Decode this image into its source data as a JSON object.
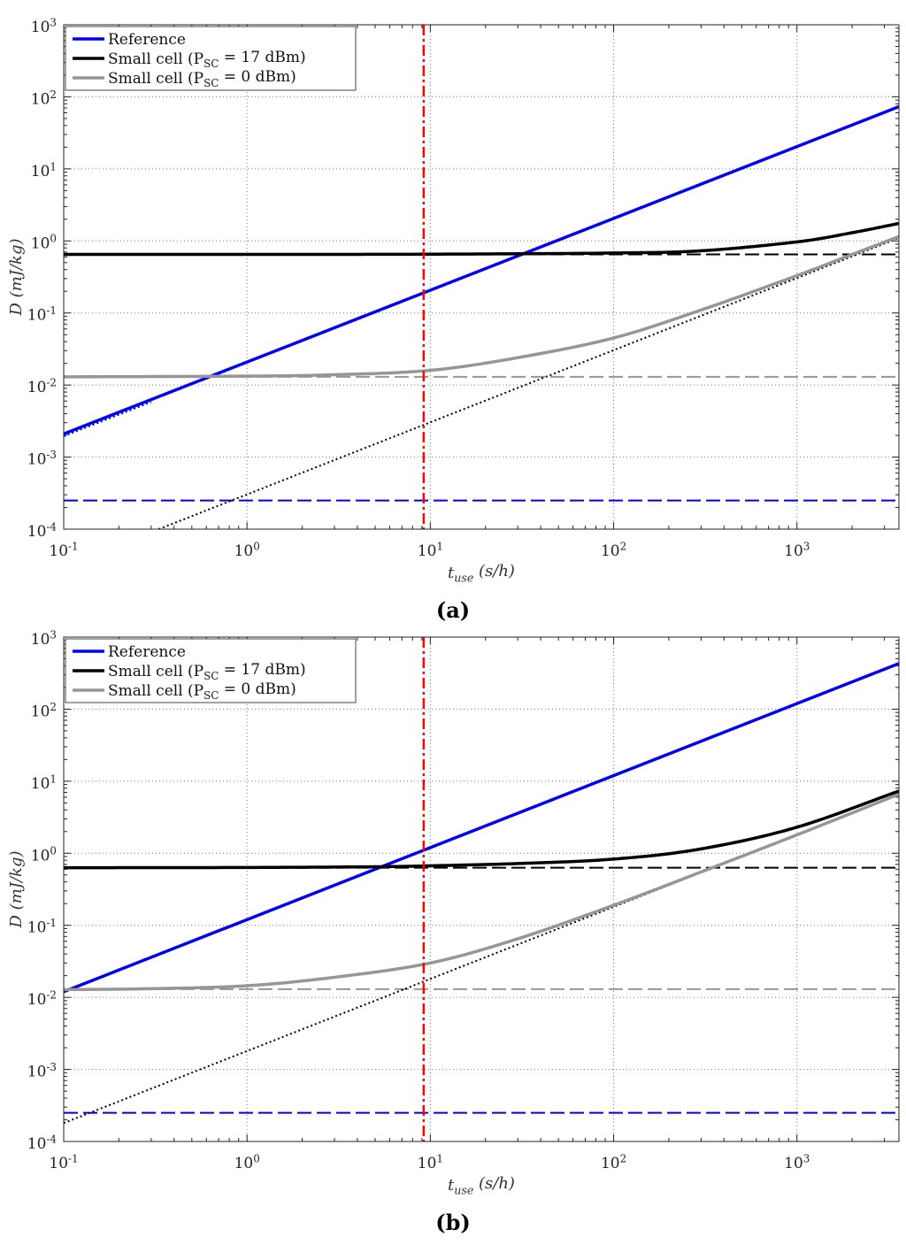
{
  "chart_data": [
    {
      "type": "line",
      "panel_label": "(a)",
      "xlabel": "t_use (s/h)",
      "ylabel": "D (mJ/kg)",
      "xscale": "log",
      "yscale": "log",
      "xlim": [
        0.1,
        3600
      ],
      "ylim": [
        0.0001,
        1000
      ],
      "grid": true,
      "legend_position": "top-left",
      "x_ticks": [
        "10^-1",
        "10^0",
        "10^1",
        "10^2",
        "10^3"
      ],
      "y_ticks": [
        "10^-4",
        "10^-3",
        "10^-2",
        "10^-1",
        "10^0",
        "10^1",
        "10^2",
        "10^3"
      ],
      "vertical_marker": {
        "x": 9.2,
        "color": "#ff0000",
        "style": "dash-dot"
      },
      "legend": [
        {
          "label": "Reference",
          "color": "#0000ee"
        },
        {
          "label": "Small cell (P_SC = 17 dBm)",
          "color": "#000000"
        },
        {
          "label": "Small cell (P_SC = 0 dBm)",
          "color": "#969696"
        }
      ],
      "series": [
        {
          "name": "Reference",
          "color": "#0000ee",
          "style": "solid",
          "x": [
            0.1,
            3600
          ],
          "y": [
            0.0021,
            73
          ]
        },
        {
          "color": "#0000ee",
          "style": "dotted",
          "x": [
            0.1,
            0.3
          ],
          "y": [
            0.00195,
            0.0058
          ]
        },
        {
          "color": "#0000ee",
          "style": "dashed",
          "x": [
            0.1,
            3600
          ],
          "y": [
            0.00025,
            0.00025
          ]
        },
        {
          "name": "Small cell (P_SC = 17 dBm)",
          "color": "#000000",
          "style": "solid",
          "x": [
            0.1,
            1,
            10,
            100,
            300,
            1000,
            2000,
            3600
          ],
          "y": [
            0.65,
            0.65,
            0.655,
            0.68,
            0.73,
            0.97,
            1.3,
            1.75
          ]
        },
        {
          "color": "#000000",
          "style": "dashed",
          "x": [
            0.1,
            3600
          ],
          "y": [
            0.65,
            0.65
          ]
        },
        {
          "name": "Small cell (P_SC = 0 dBm)",
          "color": "#969696",
          "style": "solid",
          "x": [
            0.1,
            1,
            3,
            10,
            30,
            100,
            300,
            1000,
            2000,
            3600
          ],
          "y": [
            0.013,
            0.0133,
            0.0139,
            0.016,
            0.024,
            0.045,
            0.11,
            0.33,
            0.65,
            1.15
          ]
        },
        {
          "color": "#969696",
          "style": "dashed",
          "x": [
            0.1,
            3600
          ],
          "y": [
            0.013,
            0.013
          ]
        },
        {
          "color": "#000000",
          "style": "dotted",
          "x": [
            0.33,
            3600
          ],
          "y": [
            0.0001,
            1.1
          ]
        }
      ]
    },
    {
      "type": "line",
      "panel_label": "(b)",
      "xlabel": "t_use (s/h)",
      "ylabel": "D (mJ/kg)",
      "xscale": "log",
      "yscale": "log",
      "xlim": [
        0.1,
        3600
      ],
      "ylim": [
        0.0001,
        1000
      ],
      "grid": true,
      "legend_position": "top-left",
      "x_ticks": [
        "10^-1",
        "10^0",
        "10^1",
        "10^2",
        "10^3"
      ],
      "y_ticks": [
        "10^-4",
        "10^-3",
        "10^-2",
        "10^-1",
        "10^0",
        "10^1",
        "10^2",
        "10^3"
      ],
      "vertical_marker": {
        "x": 9.2,
        "color": "#ff0000",
        "style": "dash-dot"
      },
      "legend": [
        {
          "label": "Reference",
          "color": "#0000ee"
        },
        {
          "label": "Small cell (P_SC = 17 dBm)",
          "color": "#000000"
        },
        {
          "label": "Small cell (P_SC = 0 dBm)",
          "color": "#969696"
        }
      ],
      "series": [
        {
          "name": "Reference",
          "color": "#0000ee",
          "style": "solid",
          "x": [
            0.1,
            3600
          ],
          "y": [
            0.012,
            430
          ]
        },
        {
          "color": "#0000ee",
          "style": "dashed",
          "x": [
            0.1,
            3600
          ],
          "y": [
            0.00025,
            0.00025
          ]
        },
        {
          "name": "Small cell (P_SC = 17 dBm)",
          "color": "#000000",
          "style": "solid",
          "x": [
            0.1,
            1,
            5,
            10,
            30,
            100,
            300,
            1000,
            3600
          ],
          "y": [
            0.63,
            0.635,
            0.65,
            0.67,
            0.72,
            0.83,
            1.15,
            2.3,
            7.3
          ]
        },
        {
          "color": "#000000",
          "style": "dashed",
          "x": [
            0.1,
            3600
          ],
          "y": [
            0.63,
            0.63
          ]
        },
        {
          "name": "Small cell (P_SC = 0 dBm)",
          "color": "#969696",
          "style": "solid",
          "x": [
            0.1,
            0.3,
            1,
            3,
            10,
            30,
            100,
            300,
            1000,
            3600
          ],
          "y": [
            0.0128,
            0.0132,
            0.0145,
            0.019,
            0.03,
            0.065,
            0.19,
            0.55,
            1.8,
            6.6
          ]
        },
        {
          "color": "#969696",
          "style": "dashed",
          "x": [
            0.1,
            3600
          ],
          "y": [
            0.013,
            0.013
          ]
        },
        {
          "color": "#000000",
          "style": "dotted",
          "x": [
            0.1,
            3600
          ],
          "y": [
            0.00018,
            6.5
          ]
        }
      ]
    }
  ]
}
